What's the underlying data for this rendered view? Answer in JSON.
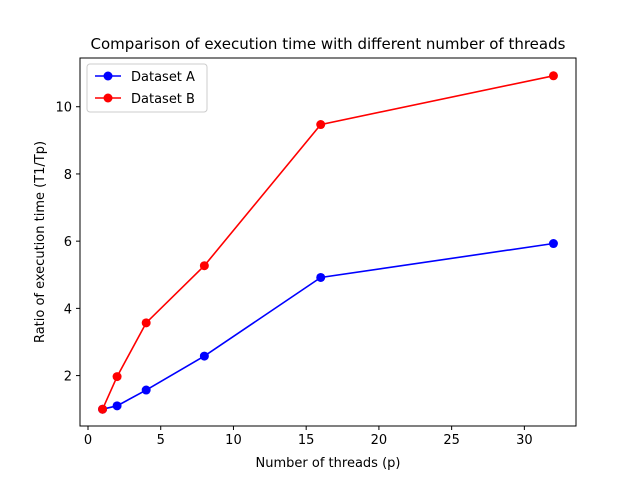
{
  "chart_data": {
    "type": "line",
    "title": "Comparison of execution time with different number of threads",
    "xlabel": "Number of threads (p)",
    "ylabel": "Ratio of execution time (T1/Tp)",
    "xlim": [
      -0.55,
      33.55
    ],
    "ylim": [
      0.5,
      11.45
    ],
    "x_ticks": [
      0,
      5,
      10,
      15,
      20,
      25,
      30
    ],
    "y_ticks": [
      2,
      4,
      6,
      8,
      10
    ],
    "grid": false,
    "legend_position": "top-left",
    "series": [
      {
        "name": "Dataset A",
        "color": "#0000ff",
        "x": [
          1,
          2,
          4,
          8,
          16,
          32
        ],
        "y": [
          1.0,
          1.1,
          1.57,
          2.58,
          4.92,
          5.93
        ]
      },
      {
        "name": "Dataset B",
        "color": "#ff0000",
        "x": [
          1,
          2,
          4,
          8,
          16,
          32
        ],
        "y": [
          1.0,
          1.97,
          3.57,
          5.27,
          9.47,
          10.92
        ]
      }
    ]
  }
}
